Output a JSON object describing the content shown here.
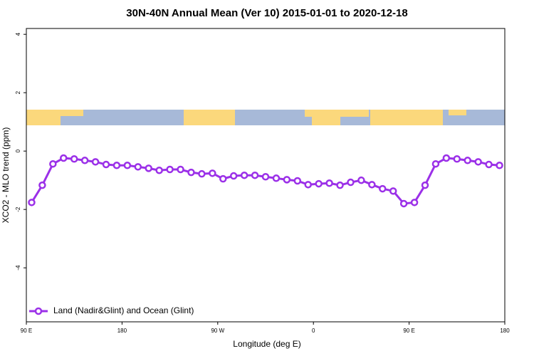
{
  "chart_data": {
    "type": "line",
    "title": "30N-40N Annual Mean (Ver 10)   2015-01-01 to 2020-12-18",
    "xlabel": "Longitude (deg E)",
    "ylabel": "XCO2 - MLO trend (ppm)",
    "x": [
      95,
      105,
      115,
      125,
      135,
      145,
      155,
      165,
      175,
      185,
      195,
      205,
      215,
      225,
      235,
      245,
      255,
      265,
      275,
      285,
      295,
      305,
      315,
      325,
      335,
      345,
      355,
      365,
      375,
      385,
      395,
      405,
      415,
      425,
      435,
      445,
      455,
      465,
      475,
      485,
      495,
      505,
      515,
      525,
      535
    ],
    "series": [
      {
        "name": "Land (Nadir&Glint) and Ocean (Glint)",
        "color": "#9b30e8",
        "values": [
          -1.76,
          -1.17,
          -0.44,
          -0.24,
          -0.27,
          -0.32,
          -0.37,
          -0.46,
          -0.49,
          -0.49,
          -0.54,
          -0.59,
          -0.66,
          -0.63,
          -0.63,
          -0.73,
          -0.78,
          -0.76,
          -0.95,
          -0.85,
          -0.83,
          -0.83,
          -0.88,
          -0.93,
          -0.98,
          -1.02,
          -1.15,
          -1.12,
          -1.1,
          -1.17,
          -1.07,
          -1.0,
          -1.15,
          -1.29,
          -1.37,
          -1.8,
          -1.76,
          -1.17,
          -0.44,
          -0.24,
          -0.27,
          -0.32,
          -0.37,
          -0.46,
          -0.49
        ]
      }
    ],
    "xlim": [
      90,
      540
    ],
    "xticks": [
      {
        "value": 90,
        "label": "90 E"
      },
      180,
      {
        "value": 270,
        "label": "90 W"
      },
      {
        "value": 360,
        "label": "0"
      },
      {
        "value": 450,
        "label": "90 E"
      },
      {
        "value": 540,
        "label": "180"
      }
    ],
    "ylim": [
      -5.85,
      4.2
    ],
    "yticks": [
      -4,
      -2,
      0,
      2,
      4
    ],
    "legend": "bottom-left"
  }
}
